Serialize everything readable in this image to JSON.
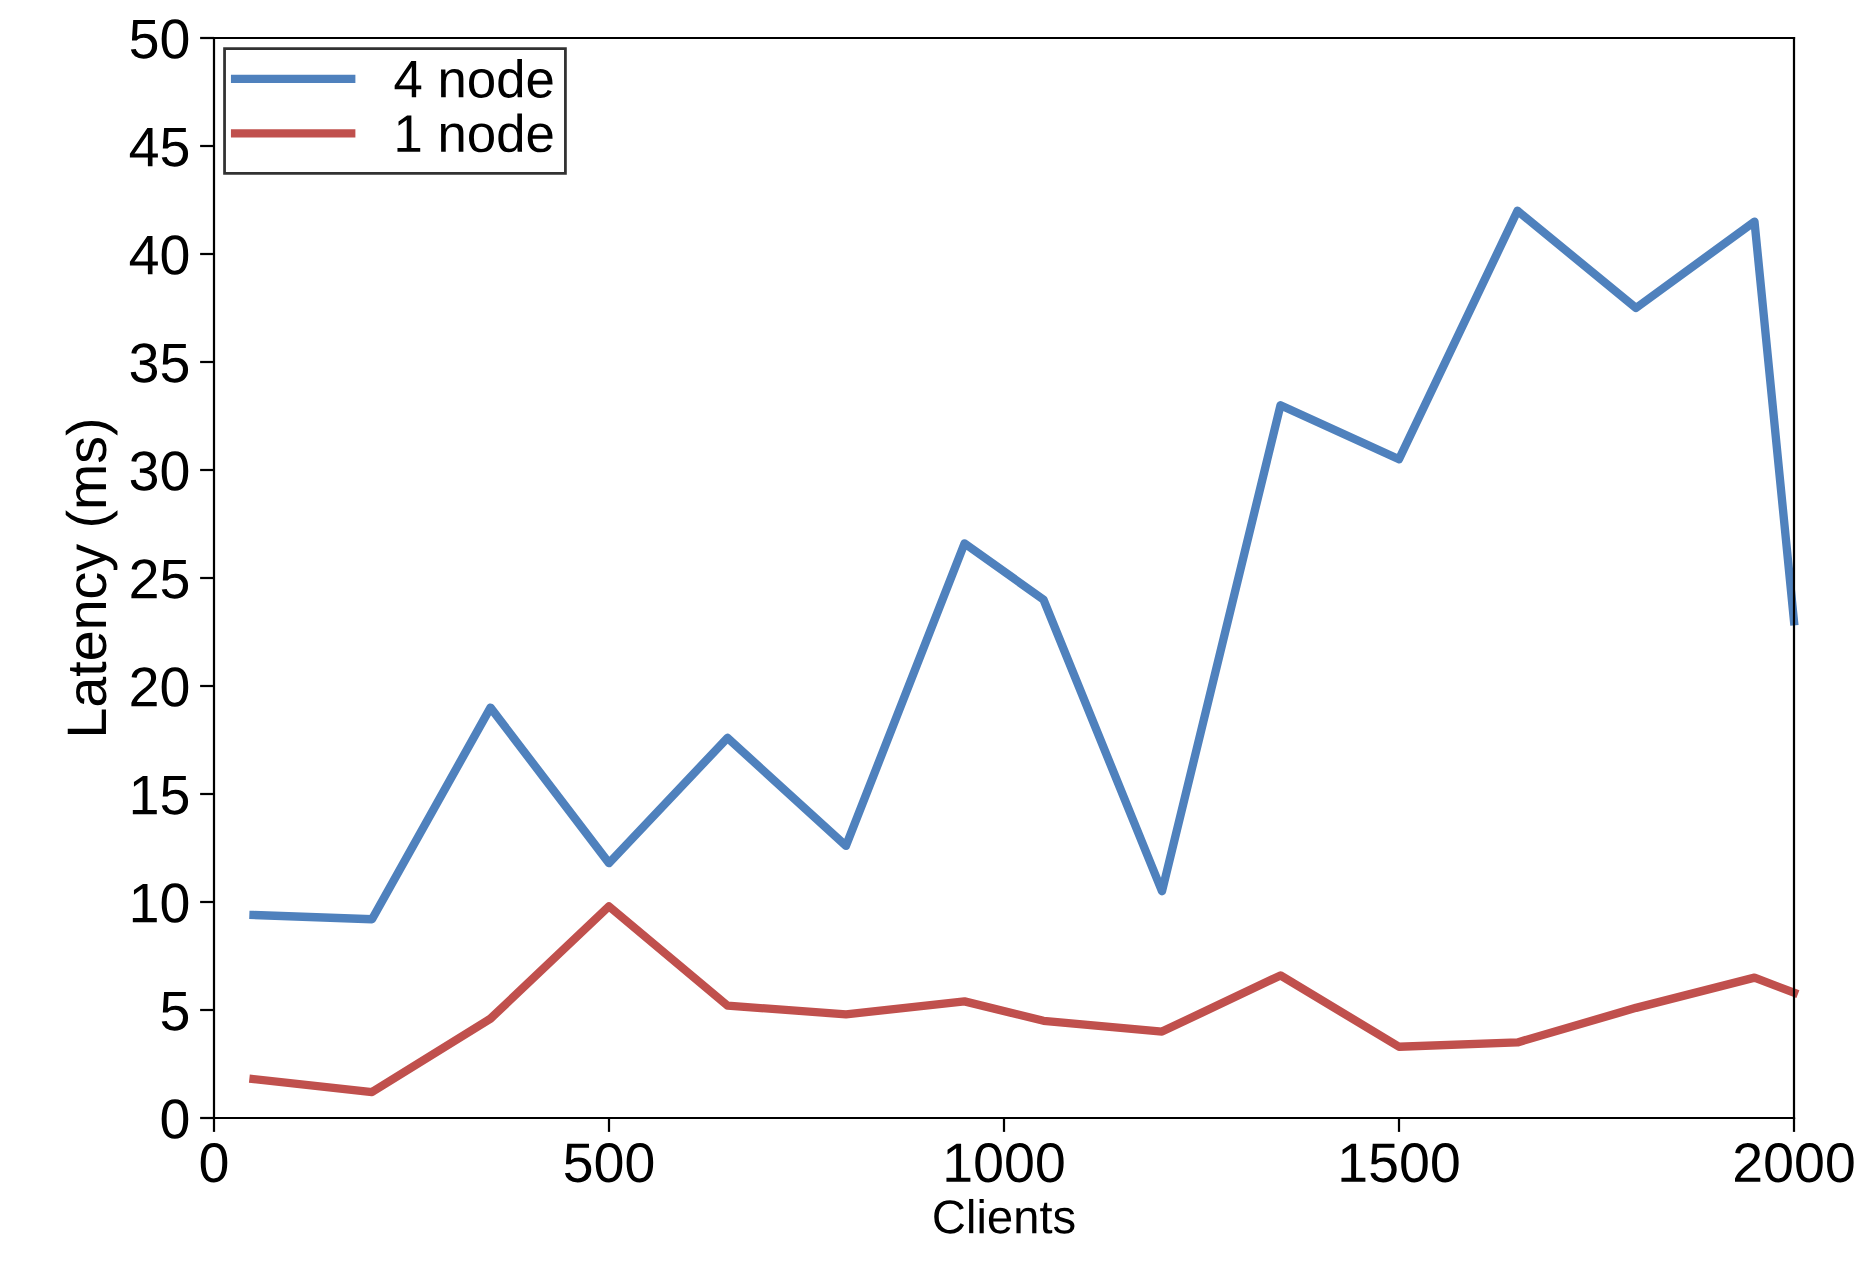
{
  "chart_data": {
    "type": "line",
    "xlabel": "Clients",
    "ylabel": "Latency (ms)",
    "x": [
      50,
      200,
      350,
      500,
      650,
      800,
      950,
      1050,
      1200,
      1350,
      1500,
      1650,
      1800,
      1950,
      2000
    ],
    "series": [
      {
        "name": "4 node",
        "color": "#4f81bd",
        "values": [
          9.4,
          9.2,
          19,
          11.8,
          17.6,
          12.6,
          26.6,
          24,
          10.5,
          33,
          30.5,
          42,
          37.5,
          41.5,
          23
        ]
      },
      {
        "name": "1 node",
        "color": "#c0504d",
        "values": [
          1.8,
          1.2,
          4.6,
          9.8,
          5.2,
          4.8,
          5.4,
          4.5,
          4.0,
          6.6,
          3.3,
          3.5,
          5.1,
          6.5,
          5.8
        ]
      }
    ],
    "xlim": [
      0,
      2000
    ],
    "xticks": [
      0,
      500,
      1000,
      1500,
      2000
    ],
    "ylim": [
      0,
      50
    ],
    "yticks": [
      0,
      5,
      10,
      15,
      20,
      25,
      30,
      35,
      40,
      45,
      50
    ],
    "grid": false,
    "legend": "top left",
    "marker": "none",
    "line_style": "solid"
  }
}
